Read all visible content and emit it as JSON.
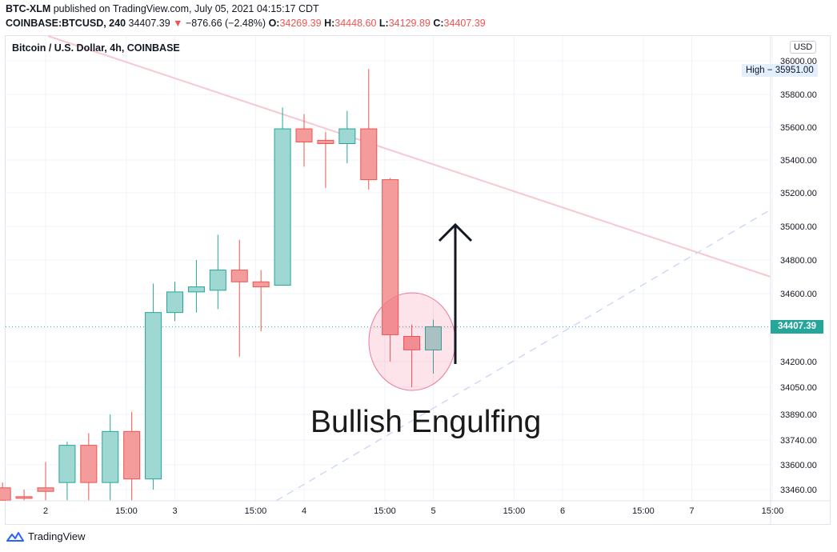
{
  "header": {
    "line1": {
      "user": "BTC-XLM",
      "rest": " published on TradingView.com, July 05, 2021 04:15:17 CDT"
    },
    "line2": {
      "symbol": "COINBASE:BTCUSD, 240",
      "last": "34407.39",
      "arrow": "▼",
      "change": "−876.66 (−2.48%)",
      "o_label": "O:",
      "o": "34269.39",
      "h_label": "H:",
      "h": "34448.60",
      "l_label": "L:",
      "l": "34129.89",
      "c_label": "C:",
      "c": "34407.39"
    }
  },
  "chart": {
    "title": "Bitcoin / U.S. Dollar, 4h, COINBASE",
    "currency": "USD",
    "last_price_label": "34407.39",
    "high_label": "High  −  35951.00",
    "annotation": "Bullish Engulfing",
    "colors": {
      "up": "#26a69a",
      "down": "#ef5350",
      "up_fill": "#9fd8d2",
      "down_fill": "#f49b9b"
    }
  },
  "chart_data": {
    "type": "candlestick",
    "title": "Bitcoin / U.S. Dollar, 4h, COINBASE",
    "y_tick_labels": [
      "36000.00",
      "35800.00",
      "35600.00",
      "35400.00",
      "35200.00",
      "35000.00",
      "34800.00",
      "34600.00",
      "34400.00",
      "34200.00",
      "34050.00",
      "33890.00",
      "33740.00",
      "33600.00",
      "33460.00"
    ],
    "x_tick_labels": [
      {
        "label": "2",
        "x": "Jul 2 00:00"
      },
      {
        "label": "15:00",
        "x": "Jul 2 15:00"
      },
      {
        "label": "3",
        "x": "Jul 3 00:00"
      },
      {
        "label": "15:00",
        "x": "Jul 3 15:00"
      },
      {
        "label": "4",
        "x": "Jul 4 00:00"
      },
      {
        "label": "15:00",
        "x": "Jul 4 15:00"
      },
      {
        "label": "5",
        "x": "Jul 5 00:00"
      },
      {
        "label": "15:00",
        "x": "Jul 5 15:00"
      },
      {
        "label": "6",
        "x": "Jul 6 00:00"
      },
      {
        "label": "15:00",
        "x": "Jul 6 15:00"
      },
      {
        "label": "7",
        "x": "Jul 7 00:00"
      },
      {
        "label": "15:00",
        "x": "Jul 7 15:00"
      }
    ],
    "candles": [
      {
        "t": "Jul 1 16:00",
        "o": 33470,
        "h": 33500,
        "l": 33400,
        "c": 33400
      },
      {
        "t": "Jul 1 20:00",
        "o": 33420,
        "h": 33460,
        "l": 33400,
        "c": 33415
      },
      {
        "t": "Jul 2 00:00",
        "o": 33470,
        "h": 33615,
        "l": 33400,
        "c": 33450
      },
      {
        "t": "Jul 2 04:00",
        "o": 33500,
        "h": 33730,
        "l": 33400,
        "c": 33710
      },
      {
        "t": "Jul 2 08:00",
        "o": 33710,
        "h": 33780,
        "l": 33400,
        "c": 33500
      },
      {
        "t": "Jul 2 12:00",
        "o": 33500,
        "h": 33890,
        "l": 33400,
        "c": 33790
      },
      {
        "t": "Jul 2 16:00",
        "o": 33790,
        "h": 33905,
        "l": 33400,
        "c": 33520
      },
      {
        "t": "Jul 2 20:00",
        "o": 33520,
        "h": 34660,
        "l": 33460,
        "c": 34490
      },
      {
        "t": "Jul 3 00:00",
        "o": 34490,
        "h": 34670,
        "l": 34440,
        "c": 34610
      },
      {
        "t": "Jul 3 04:00",
        "o": 34610,
        "h": 34800,
        "l": 34490,
        "c": 34640
      },
      {
        "t": "Jul 3 08:00",
        "o": 34620,
        "h": 34950,
        "l": 34510,
        "c": 34740
      },
      {
        "t": "Jul 3 12:00",
        "o": 34740,
        "h": 34920,
        "l": 34230,
        "c": 34670
      },
      {
        "t": "Jul 3 16:00",
        "o": 34670,
        "h": 34740,
        "l": 34380,
        "c": 34640
      },
      {
        "t": "Jul 3 20:00",
        "o": 34650,
        "h": 35720,
        "l": 34650,
        "c": 35590
      },
      {
        "t": "Jul 4 00:00",
        "o": 35590,
        "h": 35680,
        "l": 35360,
        "c": 35510
      },
      {
        "t": "Jul 4 04:00",
        "o": 35520,
        "h": 35570,
        "l": 35230,
        "c": 35500
      },
      {
        "t": "Jul 4 08:00",
        "o": 35500,
        "h": 35700,
        "l": 35380,
        "c": 35590
      },
      {
        "t": "Jul 4 12:00",
        "o": 35590,
        "h": 35951,
        "l": 35220,
        "c": 35280
      },
      {
        "t": "Jul 4 16:00",
        "o": 35280,
        "h": 35290,
        "l": 34200,
        "c": 34360
      },
      {
        "t": "Jul 4 20:00",
        "o": 34350,
        "h": 34420,
        "l": 34050,
        "c": 34270
      },
      {
        "t": "Jul 5 00:00",
        "o": 34269.39,
        "h": 34448.6,
        "l": 34129.89,
        "c": 34407.39
      }
    ],
    "last_price": 34407.39,
    "high": 35951.0
  }
}
